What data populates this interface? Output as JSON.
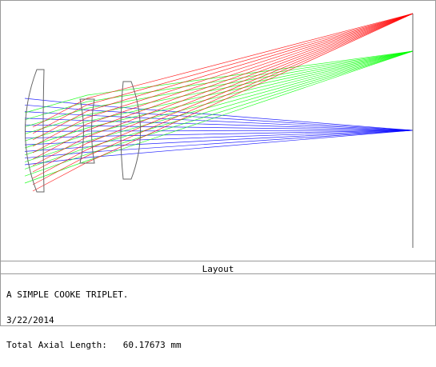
{
  "window": {
    "caption": "Layout"
  },
  "info": {
    "title_line": "A SIMPLE COOKE TRIPLET.",
    "date_line": "3/22/2014",
    "length_label": "Total Axial Length:",
    "length_value": "60.17673 mm"
  },
  "diagram": {
    "type": "optical-layout",
    "elements": [
      "lens-1",
      "lens-2",
      "lens-3",
      "image-plane"
    ],
    "fields": [
      {
        "id": "field-on-axis",
        "color": "#0000ff"
      },
      {
        "id": "field-mid",
        "color": "#00ff00"
      },
      {
        "id": "field-full",
        "color": "#ff0000"
      }
    ],
    "rays_per_field": 11,
    "colors": {
      "outline": "#666666",
      "frame": "#9a9a9a"
    }
  }
}
